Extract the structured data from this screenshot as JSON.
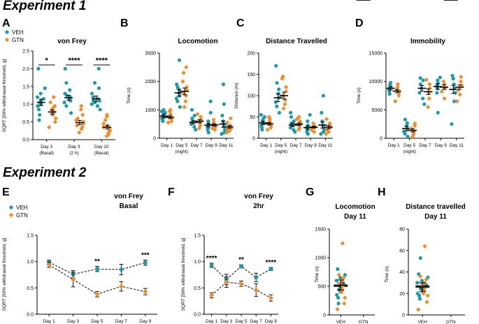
{
  "headings": {
    "experiment1": "Experiment 1",
    "experiment2": "Experiment 2"
  },
  "colors": {
    "veh": "#1B9AAA",
    "gtn": "#F28C28",
    "axis": "#000000",
    "mean": "#000000"
  },
  "legend": {
    "veh": "VEH",
    "gtn": "GTN"
  },
  "chart_data": [
    {
      "id": "A",
      "letter": "A",
      "type": "scatter",
      "title": "von Frey",
      "ylabel": "SQRT [50% withdrawal threshold, g]",
      "ylim": [
        0,
        2.5
      ],
      "yticks": [
        0.0,
        0.5,
        1.0,
        1.5,
        2.0,
        2.5
      ],
      "ytick_labels": [
        "0.0",
        "0.5",
        "1.0",
        "1.5",
        "2.0",
        "2.5"
      ],
      "categories": [
        [
          "Day 3",
          "(Basal)"
        ],
        [
          "Day 3",
          "(2 h)"
        ],
        [
          "Day 10",
          "(Basal)"
        ]
      ],
      "series": [
        {
          "name": "VEH",
          "means": [
            1.05,
            1.18,
            1.15
          ],
          "sem": [
            0.09,
            0.07,
            0.08
          ],
          "points": [
            [
              0.55,
              0.85,
              0.95,
              1.0,
              1.05,
              1.1,
              1.15,
              1.2,
              1.3,
              1.45,
              2.0,
              0.7
            ],
            [
              0.75,
              0.95,
              1.05,
              1.1,
              1.15,
              1.2,
              1.25,
              1.3,
              1.4,
              1.6,
              2.0
            ],
            [
              0.85,
              0.95,
              1.0,
              1.05,
              1.1,
              1.15,
              1.2,
              1.3,
              1.45,
              1.6,
              2.0,
              1.1
            ]
          ]
        },
        {
          "name": "GTN",
          "means": [
            0.78,
            0.48,
            0.35
          ],
          "sem": [
            0.06,
            0.06,
            0.05
          ],
          "points": [
            [
              0.35,
              0.5,
              0.6,
              0.7,
              0.75,
              0.8,
              0.85,
              0.9,
              0.95,
              1.05,
              1.2
            ],
            [
              0.2,
              0.3,
              0.35,
              0.4,
              0.45,
              0.5,
              0.55,
              0.6,
              0.7,
              0.85,
              0.95
            ],
            [
              0.1,
              0.15,
              0.2,
              0.25,
              0.3,
              0.35,
              0.4,
              0.45,
              0.55,
              0.65,
              0.7
            ]
          ]
        }
      ],
      "significance": [
        "*",
        "****",
        "****"
      ]
    },
    {
      "id": "B",
      "letter": "B",
      "type": "scatter",
      "title": "Locomotion",
      "ylabel": "Time (s)",
      "ylim": [
        0,
        3000
      ],
      "yticks": [
        0,
        1000,
        2000,
        3000
      ],
      "ytick_labels": [
        "0",
        "1000",
        "2000",
        "3000"
      ],
      "categories": [
        [
          "Day 1"
        ],
        [
          "Day 5",
          "(night)"
        ],
        [
          "Day 7"
        ],
        [
          "Day 9"
        ],
        [
          "Day 11"
        ]
      ],
      "series": [
        {
          "name": "VEH",
          "means": [
            780,
            1600,
            560,
            460,
            500
          ],
          "sem": [
            60,
            120,
            60,
            60,
            110
          ],
          "points": [
            [
              600,
              650,
              700,
              750,
              800,
              850,
              900,
              950,
              1000
            ],
            [
              1100,
              1300,
              1400,
              1500,
              1600,
              1700,
              1800,
              1900,
              2750
            ],
            [
              300,
              400,
              500,
              600,
              700,
              800,
              1000
            ],
            [
              200,
              300,
              350,
              400,
              500,
              600,
              900,
              1300
            ],
            [
              150,
              200,
              300,
              400,
              500,
              600,
              800,
              1200,
              1900
            ]
          ]
        },
        {
          "name": "GTN",
          "means": [
            740,
            1650,
            600,
            470,
            400
          ],
          "sem": [
            50,
            120,
            60,
            40,
            50
          ],
          "points": [
            [
              550,
              600,
              700,
              750,
              800,
              850,
              950,
              1000
            ],
            [
              1100,
              1300,
              1500,
              1600,
              1700,
              1800,
              2000,
              2300,
              2500
            ],
            [
              350,
              450,
              550,
              650,
              750,
              850
            ],
            [
              300,
              350,
              400,
              450,
              500,
              550,
              650
            ],
            [
              200,
              250,
              300,
              350,
              400,
              450,
              550,
              700
            ]
          ]
        }
      ]
    },
    {
      "id": "C",
      "letter": "C",
      "type": "scatter",
      "title": "Distance Travelled",
      "ylabel": "Distance (m)",
      "ylim": [
        0,
        200
      ],
      "yticks": [
        0,
        50,
        100,
        150,
        200
      ],
      "ytick_labels": [
        "0",
        "50",
        "100",
        "150",
        "200"
      ],
      "categories": [
        [
          "Day 1"
        ],
        [
          "Day 5",
          "(night)"
        ],
        [
          "Day 7"
        ],
        [
          "Day 9"
        ],
        [
          "Day 11"
        ]
      ],
      "series": [
        {
          "name": "VEH",
          "means": [
            36,
            95,
            31,
            25,
            31
          ],
          "sem": [
            4,
            9,
            4,
            4,
            7
          ],
          "points": [
            [
              20,
              25,
              30,
              35,
              40,
              45,
              50,
              55
            ],
            [
              60,
              75,
              85,
              95,
              105,
              115,
              130,
              170
            ],
            [
              15,
              20,
              25,
              30,
              35,
              40,
              50,
              60
            ],
            [
              10,
              15,
              20,
              25,
              30,
              40,
              55
            ],
            [
              10,
              15,
              20,
              25,
              30,
              40,
              60,
              100
            ]
          ]
        },
        {
          "name": "GTN",
          "means": [
            34,
            100,
            33,
            26,
            26
          ],
          "sem": [
            3,
            8,
            3,
            2,
            4
          ],
          "points": [
            [
              20,
              25,
              30,
              35,
              40,
              45,
              50
            ],
            [
              70,
              80,
              90,
              100,
              110,
              120,
              140,
              145
            ],
            [
              20,
              25,
              30,
              35,
              40,
              45,
              50
            ],
            [
              15,
              20,
              25,
              30,
              35
            ],
            [
              10,
              15,
              20,
              25,
              30,
              35,
              45
            ]
          ]
        }
      ]
    },
    {
      "id": "D",
      "letter": "D",
      "type": "scatter",
      "title": "Immobility",
      "ylabel": "Time (s)",
      "ylim": [
        0,
        15000
      ],
      "yticks": [
        0,
        5000,
        10000,
        15000
      ],
      "ytick_labels": [
        "0",
        "5000",
        "10000",
        "15000"
      ],
      "categories": [
        [
          "Day 1"
        ],
        [
          "Day 5",
          "(night)"
        ],
        [
          "Day 7"
        ],
        [
          "Day 9"
        ],
        [
          "Day 11"
        ]
      ],
      "series": [
        {
          "name": "VEH",
          "means": [
            8800,
            1700,
            8800,
            9100,
            8600
          ],
          "sem": [
            300,
            400,
            500,
            500,
            700
          ],
          "points": [
            [
              7800,
              8300,
              8700,
              9000,
              9400,
              9800
            ],
            [
              300,
              800,
              1200,
              1700,
              2200,
              2700,
              3300
            ],
            [
              6000,
              7000,
              8000,
              8800,
              9500,
              10200,
              10600
            ],
            [
              4500,
              8000,
              8800,
              9300,
              9700,
              10200,
              10700
            ],
            [
              2500,
              6500,
              8000,
              8800,
              9500,
              10500,
              11000
            ]
          ]
        },
        {
          "name": "GTN",
          "means": [
            8300,
            1400,
            8200,
            9000,
            9000
          ],
          "sem": [
            300,
            300,
            500,
            400,
            400
          ],
          "points": [
            [
              6500,
              7500,
              8000,
              8500,
              9000,
              9500
            ],
            [
              300,
              700,
              1200,
              1700,
              2200,
              2600
            ],
            [
              5500,
              7000,
              8000,
              8800,
              9500,
              10300
            ],
            [
              7000,
              8200,
              8800,
              9500,
              10000
            ],
            [
              6500,
              7700,
              8500,
              9300,
              10000,
              10800
            ]
          ]
        }
      ]
    },
    {
      "id": "E",
      "letter": "E",
      "type": "line",
      "title": "von Frey",
      "subtitle": "Basal",
      "ylabel": "SQRT [50% withdrawal threshold, g]",
      "ylim": [
        0,
        1.5
      ],
      "yticks": [
        0.0,
        0.5,
        1.0,
        1.5
      ],
      "ytick_labels": [
        "0.0",
        "0.5",
        "1.0",
        "1.5"
      ],
      "categories": [
        "Day 1",
        "Day 3",
        "Day 5",
        "Day 7",
        "Day 9"
      ],
      "series": [
        {
          "name": "VEH",
          "values": [
            0.99,
            0.76,
            0.86,
            0.85,
            0.98
          ],
          "sem": [
            0.04,
            0.07,
            0.05,
            0.1,
            0.05
          ]
        },
        {
          "name": "GTN",
          "values": [
            0.94,
            0.66,
            0.38,
            0.53,
            0.43
          ],
          "sem": [
            0.05,
            0.14,
            0.05,
            0.09,
            0.06
          ]
        }
      ],
      "significance": [
        "",
        "",
        "**",
        "",
        "***"
      ]
    },
    {
      "id": "F",
      "letter": "F",
      "type": "line",
      "title": "von Frey",
      "subtitle": "2hr",
      "ylabel": "SQRT [50% withdrawal threshold, g]",
      "ylim": [
        0,
        1.5
      ],
      "yticks": [
        0.0,
        0.5,
        1.0,
        1.5
      ],
      "ytick_labels": [
        "0.0",
        "0.5",
        "1.0",
        "1.5"
      ],
      "categories": [
        "Day 1",
        "Day 3",
        "Day 5",
        "Day 7",
        "Day 9"
      ],
      "series": [
        {
          "name": "VEH",
          "values": [
            0.93,
            0.66,
            0.91,
            0.7,
            0.86
          ],
          "sem": [
            0.04,
            0.1,
            0.03,
            0.08,
            0.03
          ]
        },
        {
          "name": "GTN",
          "values": [
            0.36,
            0.61,
            0.58,
            0.46,
            0.31
          ],
          "sem": [
            0.05,
            0.1,
            0.05,
            0.12,
            0.06
          ]
        }
      ],
      "significance": [
        "****",
        "",
        "**",
        "",
        "****"
      ]
    },
    {
      "id": "G",
      "letter": "G",
      "type": "scatter",
      "title": "Locomotion",
      "subtitle": "Day 11",
      "ylabel": "Time (s)",
      "ylim": [
        0,
        1500
      ],
      "yticks": [
        0,
        500,
        1000,
        1500
      ],
      "ytick_labels": [
        "0",
        "500",
        "1000",
        "1500"
      ],
      "categories": [
        [
          "VEH"
        ],
        [
          "GTN"
        ]
      ],
      "series": [
        {
          "name": "VEH",
          "means": [
            500
          ],
          "sem": [
            60
          ],
          "points": [
            [
              200,
              300,
              350,
              400,
              450,
              500,
              550,
              600,
              650,
              700,
              800
            ]
          ]
        },
        {
          "name": "GTN",
          "means": [
            520
          ],
          "sem": [
            90
          ],
          "points": [
            [
              100,
              200,
              300,
              400,
              450,
              500,
              550,
              600,
              650,
              700,
              1250
            ]
          ]
        }
      ]
    },
    {
      "id": "H",
      "letter": "H",
      "type": "scatter",
      "title": "Distance travelled",
      "subtitle": "Day 11",
      "ylabel": "Time (s)",
      "ylim": [
        0,
        80
      ],
      "yticks": [
        0,
        20,
        40,
        60,
        80
      ],
      "ytick_labels": [
        "0",
        "20",
        "40",
        "60",
        "80"
      ],
      "categories": [
        [
          "VEH"
        ],
        [
          "GTN"
        ]
      ],
      "series": [
        {
          "name": "VEH",
          "means": [
            27
          ],
          "sem": [
            3
          ],
          "points": [
            [
              15,
              18,
              20,
              22,
              25,
              27,
              28,
              30,
              32,
              35,
              38,
              53
            ]
          ]
        },
        {
          "name": "GTN",
          "means": [
            26
          ],
          "sem": [
            4
          ],
          "points": [
            [
              5,
              12,
              18,
              20,
              22,
              25,
              28,
              30,
              33,
              36,
              64
            ]
          ]
        }
      ]
    }
  ]
}
